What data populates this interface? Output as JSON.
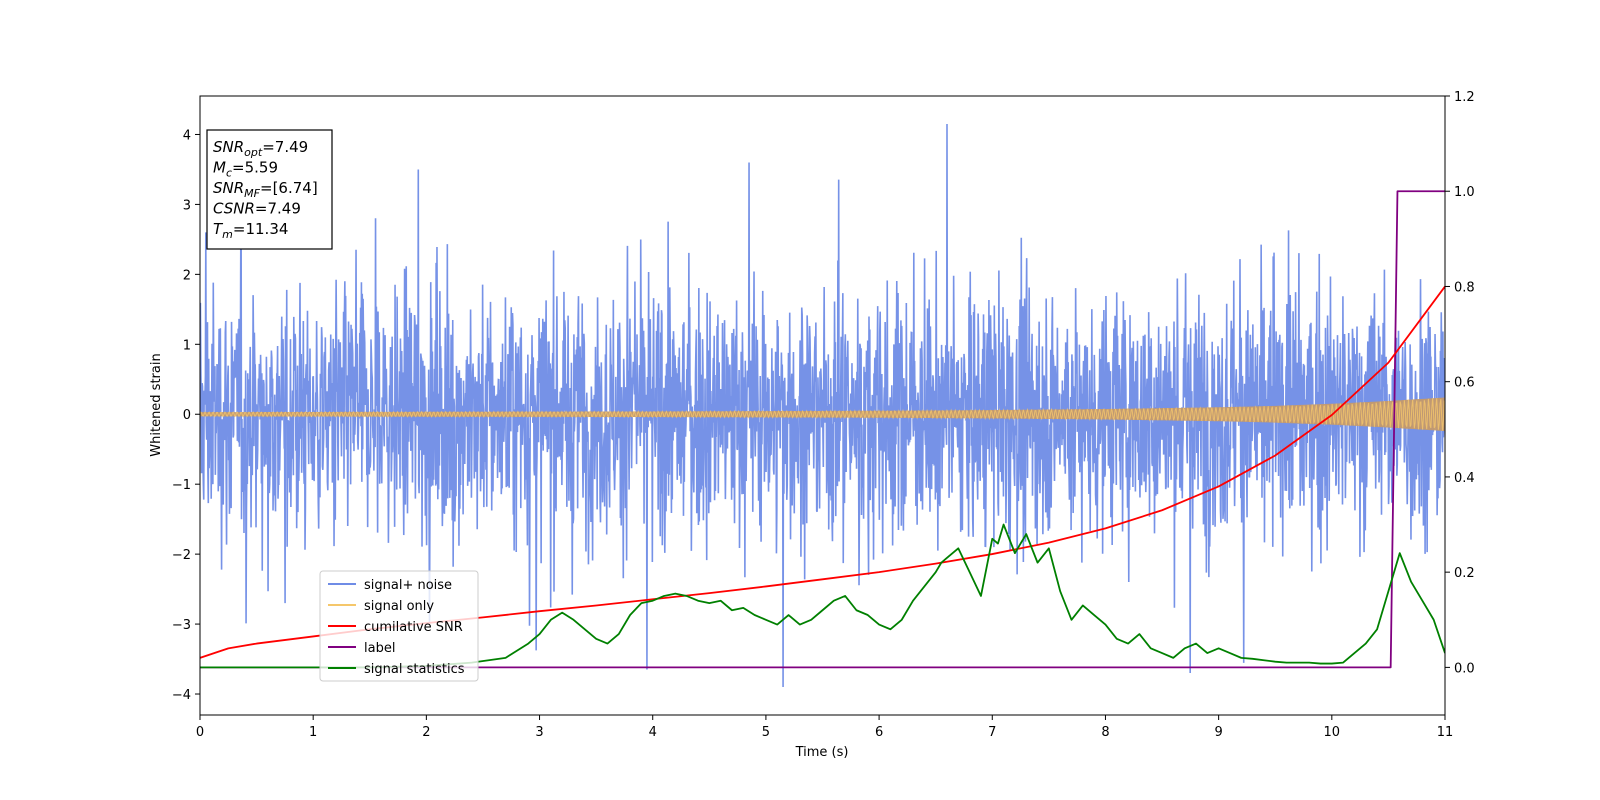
{
  "chart_data": {
    "type": "line",
    "xlabel": "Time (s)",
    "ylabel": "Whitened strain",
    "xlim": [
      0,
      11
    ],
    "ylim_left": [
      -4.3,
      4.55
    ],
    "ylim_right": [
      -0.1,
      1.2
    ],
    "x_ticks": [
      "0",
      "1",
      "2",
      "3",
      "4",
      "5",
      "6",
      "7",
      "8",
      "9",
      "10",
      "11"
    ],
    "y_ticks_left": [
      "−4",
      "−3",
      "−2",
      "−1",
      "0",
      "1",
      "2",
      "3",
      "4"
    ],
    "y_ticks_right": [
      "0.0",
      "0.2",
      "0.4",
      "0.6",
      "0.8",
      "1.0",
      "1.2"
    ],
    "legend_position": "lower-left",
    "annotation": {
      "lines": [
        {
          "sym": "SNR",
          "sub": "opt",
          "val": "=7.49"
        },
        {
          "sym": "M",
          "sub": "c",
          "val": "=5.59"
        },
        {
          "sym": "SNR",
          "sub": "MF",
          "val": "=[6.74]"
        },
        {
          "sym": "CSNR",
          "sub": "",
          "val": "=7.49"
        },
        {
          "sym": "T",
          "sub": "m",
          "val": "=11.34"
        }
      ]
    },
    "series": [
      {
        "name": "signal+ noise",
        "axis": "left",
        "color": "#6f8ce6",
        "description_values": {
          "typical_amplitude": 1.3,
          "peaks": [
            [
              0.05,
              2.6
            ],
            [
              1.93,
              3.5
            ],
            [
              4.85,
              3.6
            ],
            [
              6.6,
              4.15
            ],
            [
              5.15,
              -3.9
            ],
            [
              8.75,
              -3.7
            ],
            [
              3.95,
              -3.65
            ],
            [
              0.75,
              -2.7
            ]
          ]
        }
      },
      {
        "name": "signal only",
        "axis": "left",
        "color": "#f5c76b",
        "envelope": {
          "x": [
            0,
            2,
            4,
            6,
            7,
            8,
            9,
            9.5,
            10,
            10.5,
            11
          ],
          "amp": [
            0.03,
            0.035,
            0.04,
            0.05,
            0.06,
            0.075,
            0.1,
            0.12,
            0.15,
            0.19,
            0.24
          ]
        }
      },
      {
        "name": "cumilative SNR",
        "axis": "right",
        "color": "#ff0000",
        "x": [
          0,
          0.25,
          0.5,
          1,
          1.5,
          2,
          2.5,
          3,
          3.5,
          4,
          4.5,
          5,
          5.5,
          6,
          6.5,
          7,
          7.5,
          8,
          8.5,
          9,
          9.5,
          10,
          10.5,
          11
        ],
        "values": [
          0.02,
          0.04,
          0.05,
          0.065,
          0.08,
          0.093,
          0.105,
          0.118,
          0.13,
          0.143,
          0.156,
          0.17,
          0.185,
          0.2,
          0.218,
          0.238,
          0.262,
          0.292,
          0.33,
          0.38,
          0.445,
          0.53,
          0.64,
          0.8
        ]
      },
      {
        "name": "label",
        "axis": "right",
        "color": "#800080",
        "x": [
          0,
          10.52,
          10.58,
          11
        ],
        "values": [
          0,
          0,
          1.0,
          1.0
        ]
      },
      {
        "name": "signal statistics",
        "axis": "right",
        "color": "#008000",
        "x": [
          0,
          1.5,
          2.0,
          2.4,
          2.7,
          2.9,
          3.0,
          3.1,
          3.2,
          3.3,
          3.4,
          3.5,
          3.6,
          3.7,
          3.8,
          3.9,
          4.0,
          4.1,
          4.2,
          4.3,
          4.4,
          4.5,
          4.6,
          4.7,
          4.8,
          4.9,
          5.0,
          5.1,
          5.2,
          5.3,
          5.4,
          5.5,
          5.6,
          5.7,
          5.8,
          5.9,
          6.0,
          6.1,
          6.2,
          6.3,
          6.4,
          6.5,
          6.55,
          6.6,
          6.7,
          6.8,
          6.9,
          7.0,
          7.05,
          7.1,
          7.2,
          7.3,
          7.4,
          7.5,
          7.6,
          7.7,
          7.8,
          7.9,
          8.0,
          8.1,
          8.2,
          8.3,
          8.4,
          8.5,
          8.6,
          8.7,
          8.8,
          8.9,
          9.0,
          9.1,
          9.2,
          9.3,
          9.4,
          9.5,
          9.6,
          9.7,
          9.8,
          9.9,
          10.0,
          10.1,
          10.2,
          10.3,
          10.4,
          10.5,
          10.6,
          10.7,
          10.8,
          10.9,
          11.0
        ],
        "values": [
          0.0,
          0.0,
          0.003,
          0.01,
          0.02,
          0.05,
          0.07,
          0.1,
          0.115,
          0.1,
          0.08,
          0.06,
          0.05,
          0.07,
          0.11,
          0.135,
          0.14,
          0.15,
          0.155,
          0.15,
          0.14,
          0.135,
          0.14,
          0.12,
          0.125,
          0.11,
          0.1,
          0.09,
          0.11,
          0.09,
          0.1,
          0.12,
          0.14,
          0.15,
          0.12,
          0.11,
          0.09,
          0.08,
          0.1,
          0.14,
          0.17,
          0.2,
          0.22,
          0.23,
          0.25,
          0.2,
          0.15,
          0.27,
          0.26,
          0.3,
          0.24,
          0.28,
          0.22,
          0.25,
          0.16,
          0.1,
          0.13,
          0.11,
          0.09,
          0.06,
          0.05,
          0.07,
          0.04,
          0.03,
          0.02,
          0.04,
          0.05,
          0.03,
          0.04,
          0.03,
          0.02,
          0.018,
          0.015,
          0.012,
          0.01,
          0.01,
          0.01,
          0.008,
          0.008,
          0.01,
          0.03,
          0.05,
          0.08,
          0.16,
          0.24,
          0.18,
          0.14,
          0.1,
          0.03
        ]
      }
    ]
  }
}
